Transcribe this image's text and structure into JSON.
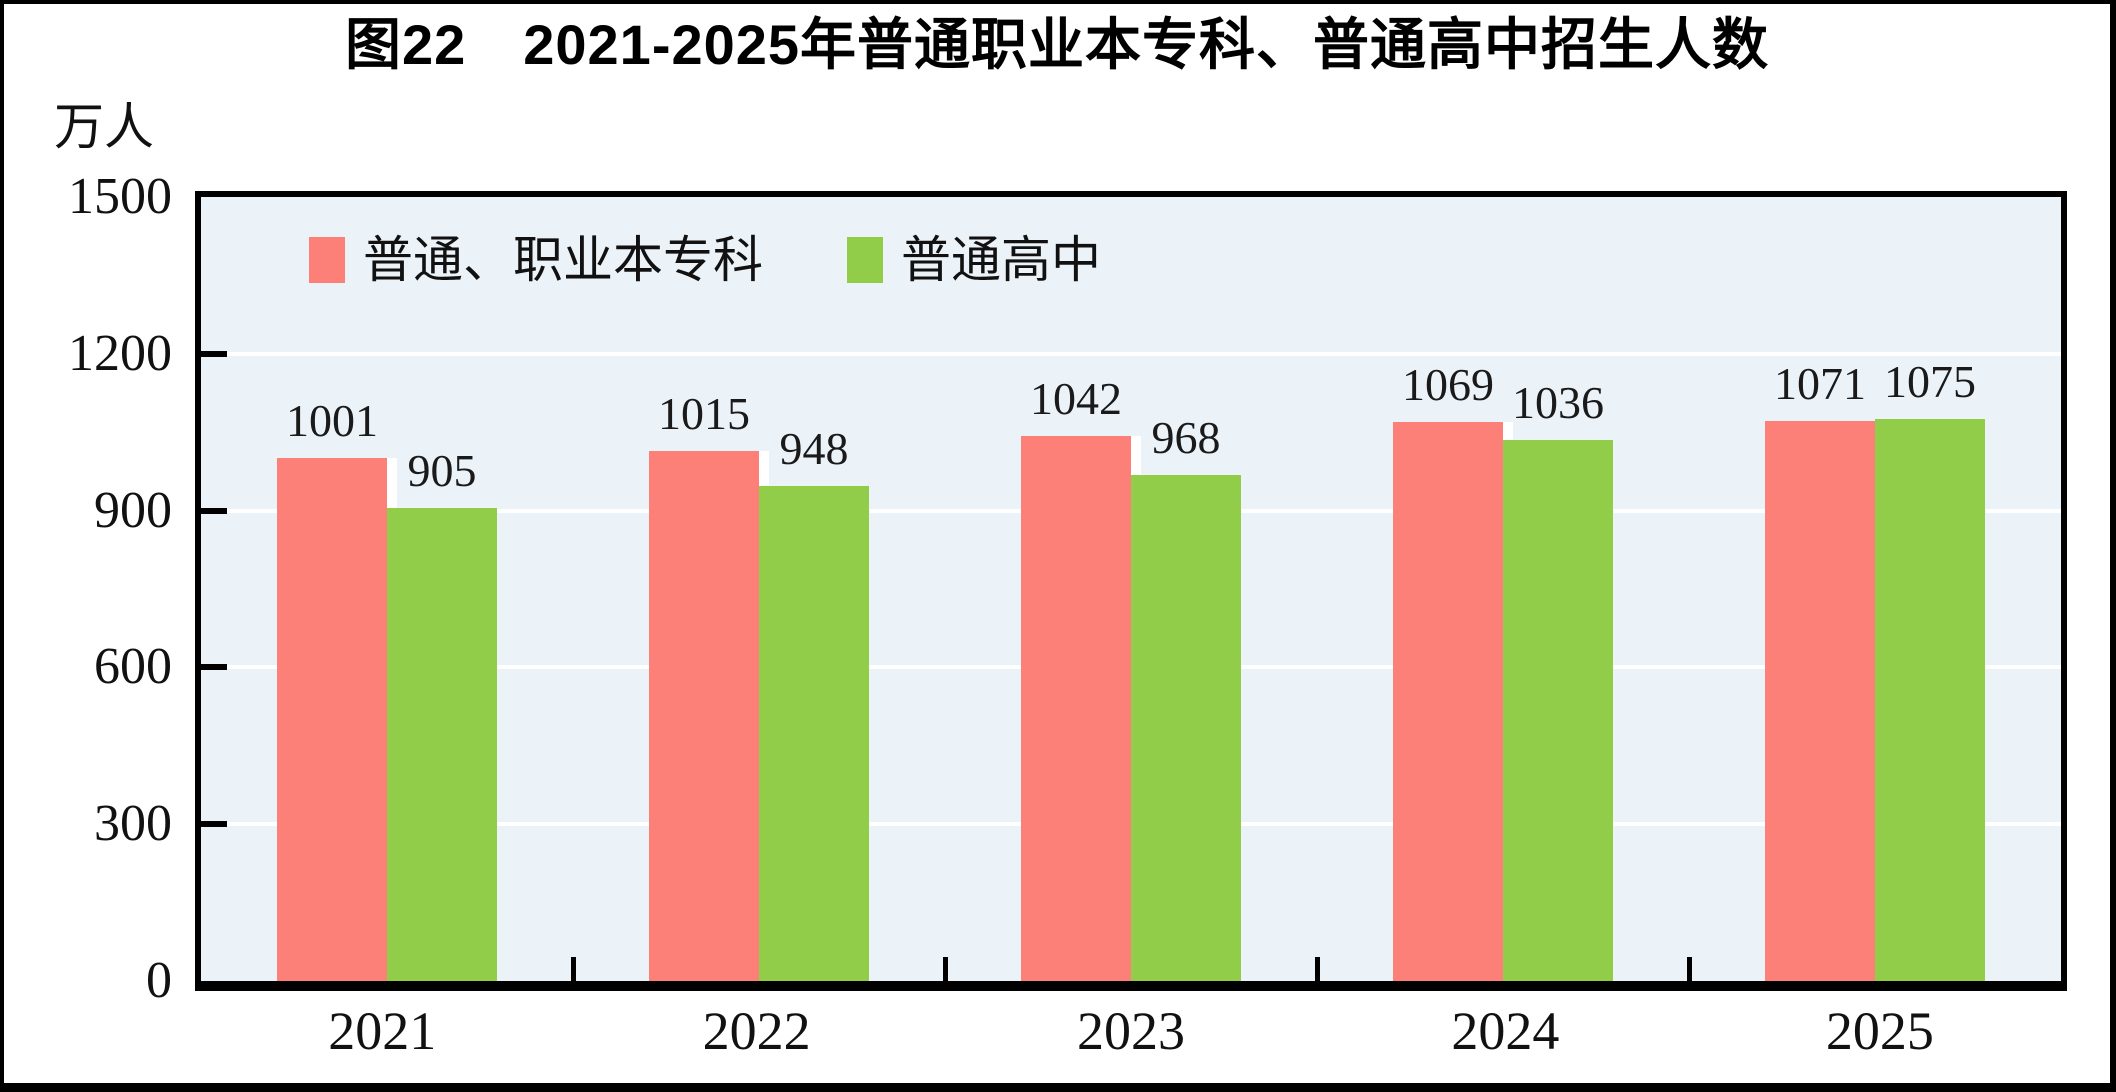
{
  "title": "图22　2021-2025年普通职业本专科、普通高中招生人数",
  "y_axis": {
    "unit": "万人",
    "ticks": [
      1500,
      1200,
      900,
      600,
      300,
      0
    ],
    "max": 1500
  },
  "legend": {
    "items": [
      {
        "label": "普通、职业本专科",
        "color": "#fc7f78"
      },
      {
        "label": "普通高中",
        "color": "#92cd4a"
      }
    ]
  },
  "chart_data": {
    "type": "bar",
    "title": "图22　2021-2025年普通职业本专科、普通高中招生人数",
    "categories": [
      "2021",
      "2022",
      "2023",
      "2024",
      "2025"
    ],
    "series": [
      {
        "name": "普通、职业本专科",
        "color": "#fc7f78",
        "values": [
          1001,
          1015,
          1042,
          1069,
          1071
        ]
      },
      {
        "name": "普通高中",
        "color": "#92cd4a",
        "values": [
          905,
          948,
          968,
          1036,
          1075
        ]
      }
    ],
    "xlabel": "",
    "ylabel": "万人",
    "ylim": [
      0,
      1500
    ],
    "ytick_step": 300,
    "grid": true,
    "gridline_color": "#ffffff",
    "plot_background": "#ebf2f8",
    "legend_position": "top-left"
  },
  "colors": {
    "bar_red": "#fc7f78",
    "bar_green": "#92cd4a",
    "plot_bg": "#ebf2f8",
    "gridline": "#ffffff",
    "axis": "#000000",
    "text": "#1a1a1a",
    "frame": "#000000"
  }
}
